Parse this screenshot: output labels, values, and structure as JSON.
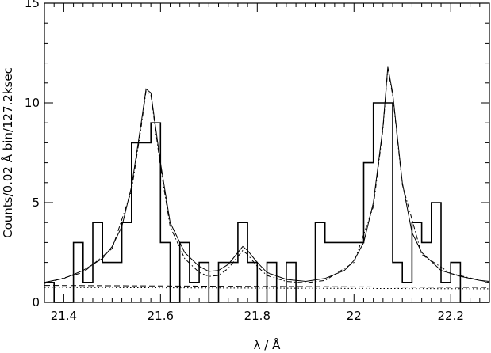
{
  "chart_data": {
    "type": "line",
    "title": "",
    "xlabel": "λ / Å",
    "ylabel": "Counts/0.02 Å bin/127.2ksec",
    "xlim": [
      21.36,
      22.28
    ],
    "ylim": [
      0,
      15
    ],
    "grid": false,
    "legend": "none",
    "x_ticks": [
      21.4,
      21.6,
      21.8,
      22,
      22.2
    ],
    "x_tick_labels": [
      "21.4",
      "21.6",
      "21.8",
      "22",
      "22.2"
    ],
    "y_ticks": [
      0,
      5,
      10,
      15
    ],
    "y_tick_labels": [
      "0",
      "5",
      "10",
      "15"
    ],
    "series": [
      {
        "style": "histogram",
        "bin_width": 0.02,
        "bin_starts": [
          21.36,
          21.38,
          21.4,
          21.42,
          21.44,
          21.46,
          21.48,
          21.5,
          21.52,
          21.54,
          21.56,
          21.58,
          21.6,
          21.62,
          21.64,
          21.66,
          21.68,
          21.7,
          21.72,
          21.74,
          21.76,
          21.78,
          21.8,
          21.82,
          21.84,
          21.86,
          21.88,
          21.9,
          21.92,
          21.94,
          21.96,
          21.98,
          22.0,
          22.02,
          22.04,
          22.06,
          22.08,
          22.1,
          22.12,
          22.14,
          22.16,
          22.18,
          22.2,
          22.22,
          22.24,
          22.26
        ],
        "values": [
          1,
          0,
          0,
          3,
          1,
          4,
          2,
          2,
          4,
          8,
          8,
          9,
          3,
          0,
          3,
          1,
          2,
          0,
          2,
          2,
          4,
          2,
          0,
          2,
          0,
          2,
          0,
          0,
          4,
          3,
          3,
          3,
          3,
          7,
          10,
          10,
          2,
          1,
          4,
          3,
          5,
          1,
          2,
          0,
          0,
          0
        ]
      },
      {
        "style": "solid",
        "x": [
          21.36,
          21.4,
          21.44,
          21.48,
          21.5,
          21.52,
          21.54,
          21.56,
          21.57,
          21.58,
          21.6,
          21.62,
          21.65,
          21.68,
          21.7,
          21.72,
          21.74,
          21.76,
          21.77,
          21.78,
          21.8,
          21.82,
          21.86,
          21.9,
          21.94,
          21.98,
          22.0,
          22.02,
          22.04,
          22.06,
          22.07,
          22.08,
          22.1,
          22.12,
          22.14,
          22.18,
          22.22,
          22.26,
          22.28
        ],
        "y": [
          1.0,
          1.2,
          1.6,
          2.2,
          2.8,
          3.8,
          5.8,
          9.0,
          10.7,
          10.5,
          7.0,
          4.0,
          2.5,
          1.8,
          1.55,
          1.6,
          1.9,
          2.5,
          2.8,
          2.6,
          2.0,
          1.5,
          1.15,
          1.05,
          1.2,
          1.6,
          2.1,
          3.0,
          5.0,
          8.8,
          11.8,
          10.5,
          6.0,
          3.5,
          2.5,
          1.6,
          1.3,
          1.1,
          1.05
        ]
      },
      {
        "style": "dash-dot",
        "x": [
          21.36,
          21.44,
          21.5,
          21.54,
          21.56,
          21.57,
          21.58,
          21.6,
          21.62,
          21.65,
          21.68,
          21.7,
          21.72,
          21.74,
          21.76,
          21.77,
          21.78,
          21.8,
          21.82,
          21.86,
          21.9,
          21.94,
          22.0,
          22.04,
          22.06,
          22.07,
          22.08,
          22.1,
          22.14,
          22.2,
          22.28
        ],
        "y": [
          0.95,
          1.5,
          2.7,
          5.6,
          8.8,
          10.6,
          10.4,
          6.8,
          3.8,
          2.2,
          1.5,
          1.3,
          1.35,
          1.7,
          2.3,
          2.6,
          2.4,
          1.8,
          1.35,
          1.05,
          0.98,
          1.1,
          2.0,
          4.8,
          8.7,
          11.7,
          10.4,
          5.9,
          2.4,
          1.45,
          1.0
        ]
      },
      {
        "style": "dashed",
        "x": [
          21.36,
          22.28
        ],
        "y": [
          0.85,
          0.75
        ]
      },
      {
        "style": "dotted",
        "x": [
          21.36,
          22.28
        ],
        "y": [
          0.75,
          0.68
        ]
      }
    ]
  }
}
